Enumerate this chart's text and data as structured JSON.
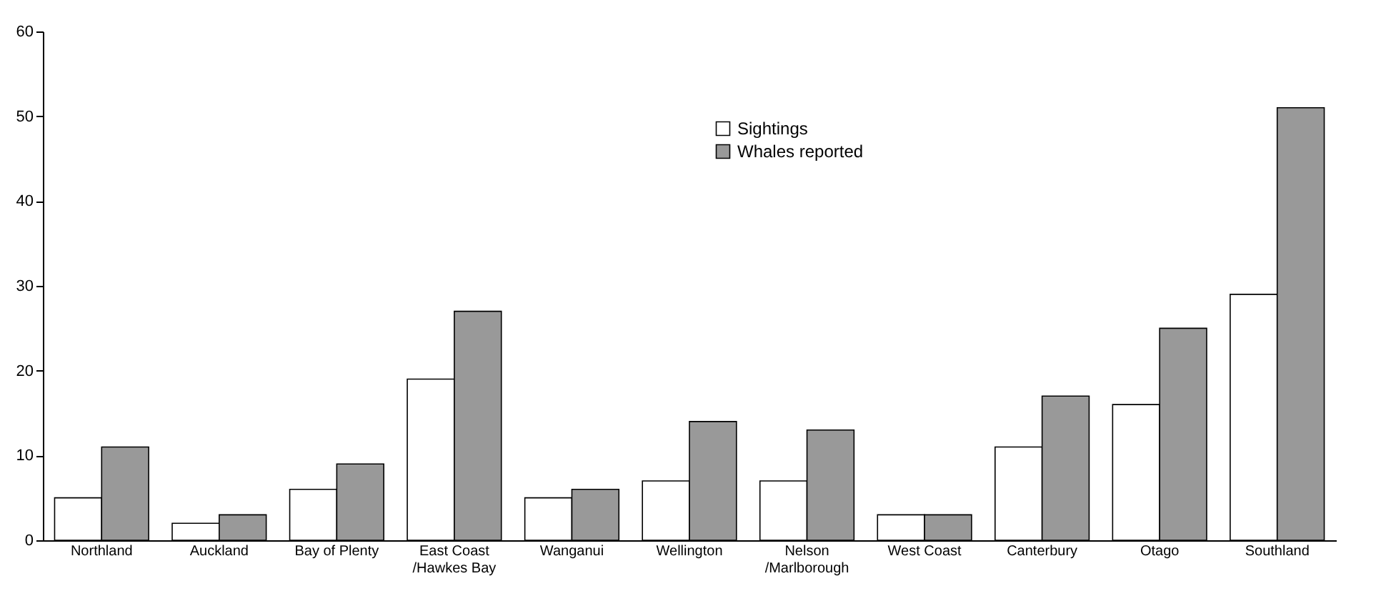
{
  "chart_data": {
    "type": "bar",
    "categories": [
      "Northland",
      "Auckland",
      "Bay of Plenty",
      "East Coast /Hawkes Bay",
      "Wanganui",
      "Wellington",
      "Nelson /Marlborough",
      "West Coast",
      "Canterbury",
      "Otago",
      "Southland"
    ],
    "series": [
      {
        "name": "Sightings",
        "color": "#ffffff",
        "values": [
          5,
          2,
          6,
          19,
          5,
          7,
          7,
          3,
          11,
          16,
          29
        ]
      },
      {
        "name": "Whales reported",
        "color": "#999999",
        "values": [
          11,
          3,
          9,
          27,
          6,
          14,
          13,
          3,
          17,
          25,
          51
        ]
      }
    ],
    "ylim": [
      0,
      60
    ],
    "yticks": [
      0,
      10,
      20,
      30,
      40,
      50,
      60
    ],
    "grid": false,
    "legend": "top"
  }
}
